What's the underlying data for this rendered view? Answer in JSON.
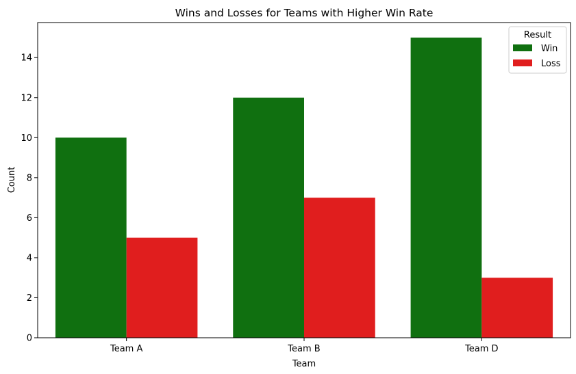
{
  "chart_data": {
    "type": "bar",
    "title": "Wins and Losses for Teams with Higher Win Rate",
    "xlabel": "Team",
    "ylabel": "Count",
    "categories": [
      "Team A",
      "Team B",
      "Team D"
    ],
    "series": [
      {
        "name": "Win",
        "color": "#107010",
        "values": [
          10,
          12,
          15
        ]
      },
      {
        "name": "Loss",
        "color": "#e01e1e",
        "values": [
          5,
          7,
          3
        ]
      }
    ],
    "ylim": [
      0,
      15.75
    ],
    "yticks": [
      0,
      2,
      4,
      6,
      8,
      10,
      12,
      14
    ],
    "grid": false,
    "legend": {
      "title": "Result",
      "placement": "top-right"
    }
  }
}
